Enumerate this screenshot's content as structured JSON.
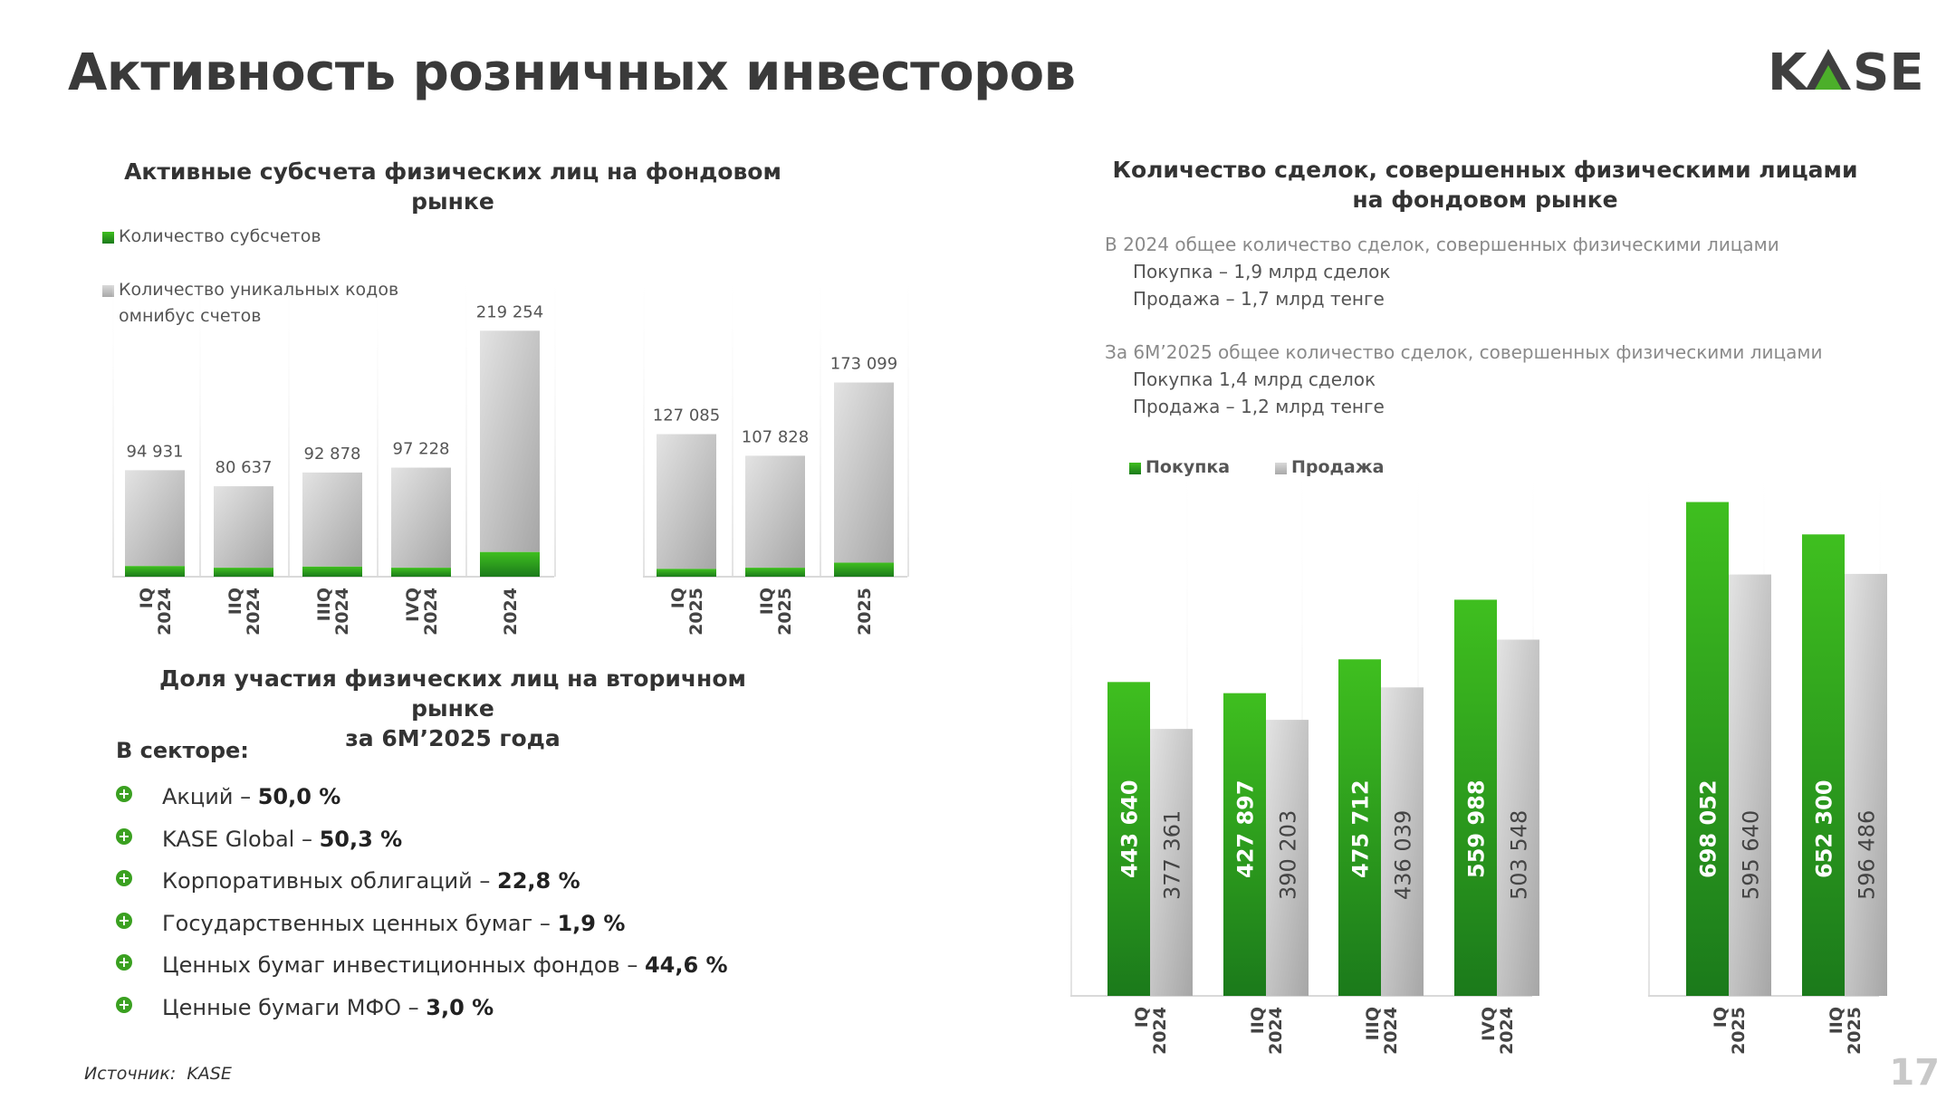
{
  "page": {
    "title": "Активность розничных инвесторов",
    "logo_text_left": "K",
    "logo_text_right": "SE",
    "source_label": "Источник:",
    "source_value": "KASE",
    "page_number": "17"
  },
  "colors": {
    "green_top": "#3fbf1f",
    "green_bottom": "#1b7a1b",
    "grey_top": "#dcdcdc",
    "grey_bottom": "#a6a6a6",
    "logo_dark": "#3f3f3f",
    "logo_green": "#4caf2a"
  },
  "left_chart": {
    "heading": "Активные субсчета физических лиц на фондовом рынке",
    "legend": {
      "green": "Количество субсчетов",
      "grey_line1": "Количество уникальных кодов",
      "grey_line2": "омнибус счетов"
    }
  },
  "right_chart": {
    "heading_line1": "Количество сделок, совершенных физическими лицами",
    "heading_line2": "на фондовом рынке",
    "note_2024_title": "В 2024 общее количество сделок, совершенных физическими лицами",
    "note_2024_buy": "Покупка – 1,9 млрд сделок",
    "note_2024_sell": "Продажа – 1,7 млрд тенге",
    "note_2025_title": "За 6М’2025 общее количество сделок, совершенных физическими лицами",
    "note_2025_buy": "Покупка    1,4 млрд сделок",
    "note_2025_sell": "Продажа – 1,2 млрд тенге",
    "legend": {
      "buy": "Покупка",
      "sell": "Продажа"
    }
  },
  "share": {
    "heading_line1": "Доля участия физических лиц на вторичном рынке",
    "heading_line2": "за 6М’2025 года",
    "sector_label": "В секторе:",
    "items": [
      {
        "label": "Акций – ",
        "value": "50,0 %"
      },
      {
        "label": "KASE Global – ",
        "value": "50,3 %"
      },
      {
        "label": "Корпоративных облигаций – ",
        "value": "22,8 %"
      },
      {
        "label": "Государственных ценных бумаг – ",
        "value": "1,9 %"
      },
      {
        "label": "Ценных бумаг инвестиционных фондов – ",
        "value": "44,6 %"
      },
      {
        "label": "Ценные бумаги МФО – ",
        "value": "3,0 %"
      }
    ]
  },
  "chart_data": [
    {
      "type": "bar",
      "title": "Активные субсчета физических лиц на фондовом рынке",
      "stacked": true,
      "categories": [
        [
          "IQ",
          "2024"
        ],
        [
          "IIQ",
          "2024"
        ],
        [
          "IIIQ",
          "2024"
        ],
        [
          "IVQ",
          "2024"
        ],
        [
          "2024"
        ],
        [
          "IQ",
          "2025"
        ],
        [
          "IIQ",
          "2025"
        ],
        [
          "2025"
        ]
      ],
      "totals_labels": [
        "94 931",
        "80 637",
        "92 878",
        "97 228",
        "219 254",
        "127 085",
        "107 828",
        "173 099"
      ],
      "series": [
        {
          "name": "Количество субсчетов",
          "values": [
            9500,
            8000,
            9000,
            8000,
            22000,
            7000,
            8000,
            12500
          ]
        },
        {
          "name": "Количество уникальных кодов омнибус счетов",
          "values": [
            85431,
            72637,
            83878,
            89228,
            197254,
            120085,
            99828,
            160599
          ]
        }
      ],
      "ylim": [
        0,
        230000
      ],
      "grid": "vertical separators",
      "legend": "top-left"
    },
    {
      "type": "bar",
      "title": "Количество сделок, совершенных физическими лицами на фондовом рынке",
      "categories": [
        [
          "IQ",
          "2024"
        ],
        [
          "IIQ",
          "2024"
        ],
        [
          "IIIQ",
          "2024"
        ],
        [
          "IVQ",
          "2024"
        ],
        [
          "IQ",
          "2025"
        ],
        [
          "IIQ",
          "2025"
        ]
      ],
      "series": [
        {
          "name": "Покупка",
          "values": [
            443640,
            427897,
            475712,
            559988,
            698052,
            652300
          ],
          "labels": [
            "443 640",
            "427 897",
            "475 712",
            "559 988",
            "698 052",
            "652 300"
          ]
        },
        {
          "name": "Продажа",
          "values": [
            377361,
            390203,
            436039,
            503548,
            595640,
            596486
          ],
          "labels": [
            "377 361",
            "390 203",
            "436 039",
            "503 548",
            "595 640",
            "596 486"
          ]
        }
      ],
      "ylim": [
        0,
        700000
      ],
      "grid": "vertical separators",
      "legend": "top-left"
    }
  ]
}
